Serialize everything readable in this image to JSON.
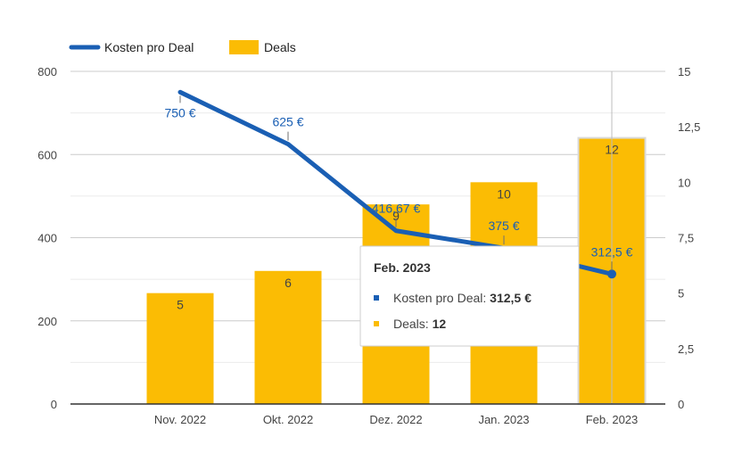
{
  "chart_data": {
    "type": "bar",
    "categories": [
      "Nov. 2022",
      "Okt. 2022",
      "Dez. 2022",
      "Jan. 2023",
      "Feb. 2023"
    ],
    "series": [
      {
        "name": "Kosten pro Deal",
        "kind": "line",
        "axis": "left",
        "values": [
          750,
          625,
          416.67,
          375,
          312.5
        ],
        "labels": [
          "750 €",
          "625 €",
          "416,67 €",
          "375 €",
          "312,5 €"
        ],
        "color": "#1a5fb4"
      },
      {
        "name": "Deals",
        "kind": "bar",
        "axis": "right",
        "values": [
          5,
          6,
          9,
          10,
          12
        ],
        "labels": [
          "5",
          "6",
          "9",
          "10",
          "12"
        ],
        "color": "#fbbc04"
      }
    ],
    "y_left": {
      "ylim": [
        0,
        800
      ],
      "ticks": [
        "0",
        "200",
        "400",
        "600",
        "800"
      ]
    },
    "y_right": {
      "ylim": [
        0,
        15
      ],
      "ticks": [
        "0",
        "2,5",
        "5",
        "7,5",
        "10",
        "12,5",
        "15"
      ]
    },
    "grid": true,
    "legend_position": "top-left",
    "title": "",
    "xlabel": "",
    "ylabel": ""
  },
  "tooltip": {
    "title": "Feb. 2023",
    "rows": [
      {
        "label": "Kosten pro Deal: ",
        "value": "312,5 €",
        "color": "#1a5fb4"
      },
      {
        "label": "Deals: ",
        "value": "12",
        "color": "#fbbc04"
      }
    ]
  }
}
